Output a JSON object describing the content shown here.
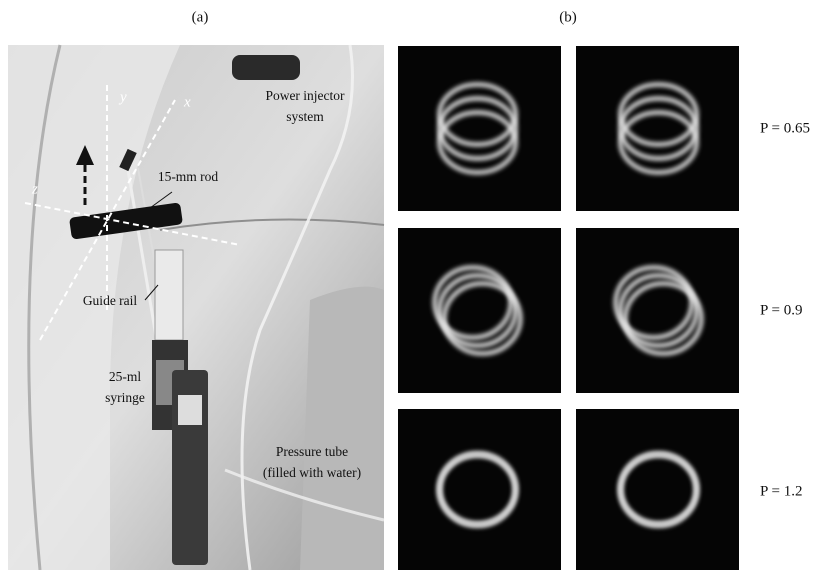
{
  "panel_a": {
    "label": "(a)",
    "axes": [
      "y",
      "x",
      "z"
    ],
    "annotations": [
      {
        "lines": [
          "Power injector",
          "system"
        ]
      },
      {
        "lines": [
          "15-mm rod"
        ]
      },
      {
        "lines": [
          "Guide rail"
        ]
      },
      {
        "lines": [
          "25-ml",
          "syringe"
        ]
      },
      {
        "lines": [
          "Pressure tube",
          "(filled with water)"
        ]
      }
    ]
  },
  "panel_b": {
    "label": "(b)",
    "rows": [
      {
        "label": "P = 0.65"
      },
      {
        "label": "P = 0.9"
      },
      {
        "label": "P = 1.2"
      }
    ]
  }
}
